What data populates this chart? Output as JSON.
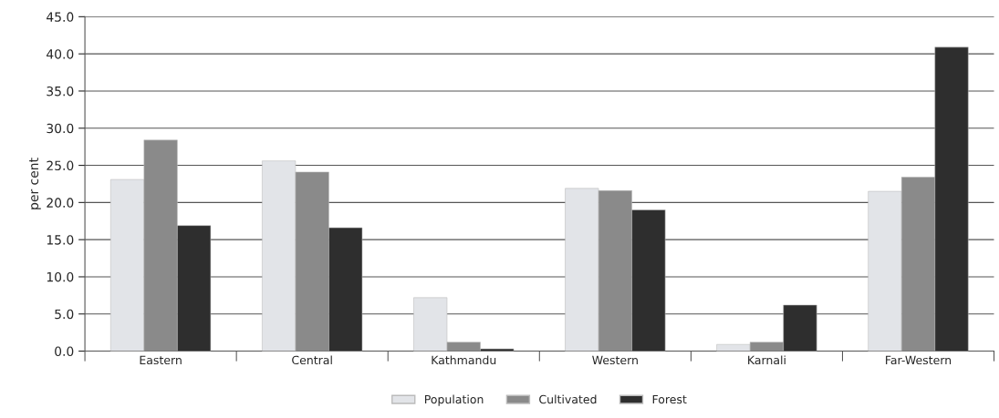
{
  "chart_data": {
    "type": "bar",
    "ylabel": "per cent",
    "categories": [
      "Eastern",
      "Central",
      "Kathmandu",
      "Western",
      "Karnali",
      "Far-Western"
    ],
    "series": [
      {
        "name": "Population",
        "color": "#e2e4e8",
        "values": [
          23.1,
          25.6,
          7.2,
          21.9,
          0.9,
          21.5
        ]
      },
      {
        "name": "Cultivated",
        "color": "#8a8a8a",
        "values": [
          28.4,
          24.1,
          1.2,
          21.6,
          1.2,
          23.4
        ]
      },
      {
        "name": "Forest",
        "color": "#2e2e2e",
        "values": [
          16.9,
          16.6,
          0.3,
          19.0,
          6.2,
          40.9
        ]
      }
    ],
    "ylim": [
      0,
      45
    ],
    "yticks": [
      {
        "value": 0,
        "label": "0.0"
      },
      {
        "value": 5,
        "label": "5.0"
      },
      {
        "value": 10,
        "label": "10.0"
      },
      {
        "value": 15,
        "label": "15.0"
      },
      {
        "value": 20,
        "label": "20.0"
      },
      {
        "value": 25,
        "label": "25.0"
      },
      {
        "value": 30,
        "label": "30.0"
      },
      {
        "value": 35,
        "label": "35.0"
      },
      {
        "value": 40,
        "label": "40.0"
      },
      {
        "value": 45,
        "label": "45.0"
      }
    ],
    "grid": "y",
    "legend": "bottom"
  }
}
